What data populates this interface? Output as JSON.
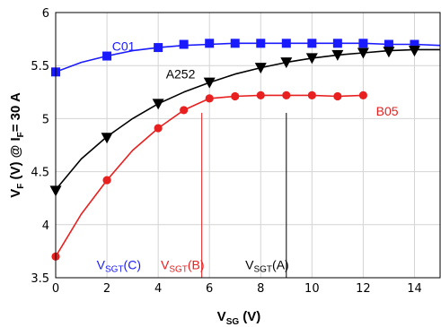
{
  "chart_data": {
    "type": "line",
    "xlabel": {
      "main": "V",
      "sub": "SG",
      "rest": " (V)"
    },
    "ylabel": {
      "a": "V",
      "a_sub": "F",
      "b": " (V) @ I",
      "b_sub": "F",
      "c": "= 30 A"
    },
    "xlim": [
      0,
      15
    ],
    "ylim": [
      3.5,
      6
    ],
    "x_ticks": [
      0,
      2,
      4,
      6,
      8,
      10,
      12,
      14
    ],
    "y_ticks": [
      3.5,
      4,
      4.5,
      5,
      5.5,
      6
    ],
    "y_tick_labels": [
      "3.5",
      "4",
      "4.5",
      "5",
      "5.5",
      "6"
    ],
    "grid": true,
    "series": [
      {
        "name": "C01",
        "color": "#1a1aff",
        "marker": "square",
        "x": [
          0,
          2,
          4,
          5,
          6,
          7,
          8,
          9,
          10,
          11,
          12,
          13,
          14
        ],
        "y": [
          5.44,
          5.59,
          5.67,
          5.7,
          5.71,
          5.71,
          5.71,
          5.71,
          5.71,
          5.71,
          5.71,
          5.7,
          5.7
        ],
        "curve_x": [
          0,
          1,
          2,
          3,
          4,
          5,
          6,
          7,
          8,
          9,
          10,
          11,
          12,
          13,
          14,
          15
        ],
        "curve_y": [
          5.44,
          5.53,
          5.59,
          5.64,
          5.67,
          5.69,
          5.7,
          5.71,
          5.71,
          5.71,
          5.71,
          5.71,
          5.71,
          5.7,
          5.7,
          5.69
        ]
      },
      {
        "name": "A252",
        "color": "#000000",
        "marker": "triangle-down",
        "x": [
          0,
          2,
          4,
          6,
          8,
          9,
          10,
          11,
          12,
          13,
          14
        ],
        "y": [
          4.32,
          4.82,
          5.14,
          5.34,
          5.48,
          5.53,
          5.57,
          5.6,
          5.62,
          5.63,
          5.64
        ],
        "curve_x": [
          0,
          1,
          2,
          3,
          4,
          5,
          6,
          7,
          8,
          9,
          10,
          11,
          12,
          13,
          14,
          15
        ],
        "curve_y": [
          4.33,
          4.62,
          4.83,
          5.0,
          5.14,
          5.25,
          5.34,
          5.42,
          5.48,
          5.53,
          5.57,
          5.6,
          5.62,
          5.64,
          5.65,
          5.65
        ]
      },
      {
        "name": "B05",
        "color": "#e82020",
        "marker": "circle",
        "x": [
          0,
          2,
          4,
          5,
          6,
          7,
          8,
          9,
          10,
          11,
          12
        ],
        "y": [
          3.7,
          4.42,
          4.91,
          5.08,
          5.19,
          5.21,
          5.22,
          5.22,
          5.22,
          5.21,
          5.22
        ],
        "curve_x": [
          0,
          1,
          2,
          3,
          4,
          5,
          6,
          7,
          8,
          9,
          10,
          11,
          12
        ],
        "curve_y": [
          3.7,
          4.1,
          4.42,
          4.7,
          4.91,
          5.08,
          5.19,
          5.21,
          5.22,
          5.22,
          5.22,
          5.21,
          5.22
        ]
      }
    ],
    "series_labels": [
      {
        "text": "C01",
        "color": "#1a1aff",
        "x": 2.2,
        "y": 5.64
      },
      {
        "text": "A252",
        "color": "#000000",
        "x": 4.3,
        "y": 5.38
      },
      {
        "text": "B05",
        "color": "#e82020",
        "x": 12.5,
        "y": 5.03
      }
    ],
    "threshold_lines": [
      {
        "x": 5.7,
        "color": "#e82020",
        "label_main": "V",
        "label_sub": "SGT",
        "label_rest": "(B)",
        "label_x": 4.1
      },
      {
        "x": 9.0,
        "color": "#000000",
        "label_main": "V",
        "label_sub": "SGT",
        "label_rest": "(A)",
        "label_x": 7.4
      },
      {
        "x": null,
        "color": "#1a1aff",
        "label_main": "V",
        "label_sub": "SGT",
        "label_rest": "(C)",
        "label_x": 1.6
      }
    ],
    "threshold_label_y": 3.58
  }
}
